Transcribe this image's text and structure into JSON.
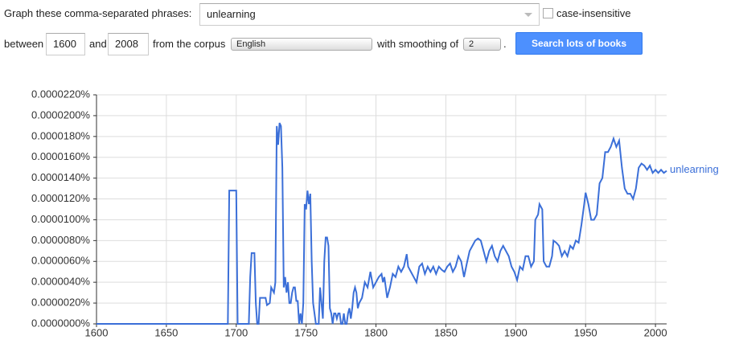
{
  "form": {
    "phrases_label": "Graph these comma-separated phrases:",
    "phrases_value": "unlearning",
    "case_label": "case-insensitive",
    "between_label": "between",
    "start_year": "1600",
    "and_label": "and",
    "end_year": "2008",
    "corpus_label": "from the corpus",
    "corpus_value": "English",
    "smoothing_label": "with smoothing of",
    "smoothing_value": "2",
    "period": ".",
    "button": "Search lots of books"
  },
  "chart_data": {
    "type": "line",
    "grid": true,
    "xlim": [
      1600,
      2008
    ],
    "xticks": [
      1600,
      1650,
      1700,
      1750,
      1800,
      1850,
      1900,
      1950,
      2000
    ],
    "ylim": [
      0,
      2.2e-05
    ],
    "yticks": [
      {
        "value": 0,
        "label": "0.0000000%"
      },
      {
        "value": 2e-06,
        "label": "0.0000020%"
      },
      {
        "value": 4e-06,
        "label": "0.0000040%"
      },
      {
        "value": 6e-06,
        "label": "0.0000060%"
      },
      {
        "value": 8e-06,
        "label": "0.0000080%"
      },
      {
        "value": 1e-05,
        "label": "0.0000100%"
      },
      {
        "value": 1.2e-05,
        "label": "0.0000120%"
      },
      {
        "value": 1.4e-05,
        "label": "0.0000140%"
      },
      {
        "value": 1.6e-05,
        "label": "0.0000160%"
      },
      {
        "value": 1.8e-05,
        "label": "0.0000180%"
      },
      {
        "value": 2e-05,
        "label": "0.0000200%"
      },
      {
        "value": 2.2e-05,
        "label": "0.0000220%"
      }
    ],
    "x": [
      1600,
      1694,
      1695,
      1700,
      1701,
      1709,
      1710,
      1711,
      1713,
      1714,
      1715,
      1716,
      1717,
      1719,
      1721,
      1722,
      1724,
      1725,
      1727,
      1728,
      1729,
      1730,
      1731,
      1732,
      1733,
      1734,
      1735,
      1736,
      1737,
      1738,
      1739,
      1740,
      1741,
      1742,
      1743,
      1744,
      1745,
      1746,
      1747,
      1748,
      1749,
      1750,
      1751,
      1752,
      1753,
      1754,
      1755,
      1756,
      1757,
      1759,
      1760,
      1761,
      1762,
      1763,
      1764,
      1765,
      1766,
      1767,
      1768,
      1769,
      1770,
      1771,
      1772,
      1773,
      1774,
      1775,
      1776,
      1777,
      1778,
      1779,
      1780,
      1781,
      1782,
      1783,
      1784,
      1785,
      1786,
      1787,
      1788,
      1790,
      1792,
      1794,
      1796,
      1798,
      1800,
      1802,
      1804,
      1805,
      1806,
      1807,
      1808,
      1810,
      1812,
      1814,
      1816,
      1818,
      1820,
      1822,
      1823,
      1825,
      1827,
      1829,
      1831,
      1833,
      1835,
      1837,
      1839,
      1841,
      1843,
      1845,
      1847,
      1849,
      1851,
      1853,
      1855,
      1857,
      1859,
      1861,
      1863,
      1865,
      1867,
      1869,
      1871,
      1873,
      1875,
      1877,
      1879,
      1881,
      1883,
      1885,
      1887,
      1889,
      1891,
      1893,
      1895,
      1897,
      1899,
      1901,
      1903,
      1905,
      1907,
      1909,
      1911,
      1913,
      1914,
      1916,
      1917,
      1919,
      1920,
      1922,
      1924,
      1926,
      1927,
      1929,
      1931,
      1933,
      1935,
      1937,
      1939,
      1941,
      1943,
      1945,
      1947,
      1949,
      1950,
      1952,
      1954,
      1956,
      1958,
      1960,
      1962,
      1964,
      1966,
      1968,
      1970,
      1972,
      1974,
      1976,
      1978,
      1980,
      1982,
      1984,
      1986,
      1988,
      1990,
      1992,
      1994,
      1996,
      1998,
      2000,
      2002,
      2004,
      2006,
      2008
    ],
    "series": [
      {
        "name": "unlearning",
        "color": "#3b6fd8",
        "values": [
          0,
          0,
          1.28e-05,
          1.28e-05,
          0,
          0,
          4.5e-06,
          6.8e-06,
          6.8e-06,
          2e-06,
          0,
          0,
          2.5e-06,
          2.5e-06,
          2.5e-06,
          1.8e-06,
          2e-06,
          3.5e-06,
          3e-06,
          4e-06,
          1.9e-05,
          1.72e-05,
          1.93e-05,
          1.9e-05,
          1.5e-05,
          3.5e-06,
          4.5e-06,
          3e-06,
          4e-06,
          2e-06,
          2e-06,
          3e-06,
          3.5e-06,
          3.5e-06,
          2.2e-06,
          2.2e-06,
          0,
          1e-06,
          0,
          2e-06,
          1.15e-05,
          1.1e-05,
          1.28e-05,
          1.15e-05,
          1.25e-05,
          6e-06,
          2e-06,
          1e-06,
          0,
          0,
          3.5e-06,
          2e-06,
          5e-07,
          6e-06,
          8.3e-06,
          8.3e-06,
          7.5e-06,
          1.5e-06,
          1e-06,
          0,
          1e-06,
          1e-06,
          5e-07,
          1e-06,
          1e-06,
          0,
          0,
          1e-06,
          0,
          0,
          1e-06,
          1.5e-06,
          5e-07,
          1.5e-06,
          3e-06,
          3.5e-06,
          3e-06,
          1.5e-06,
          2e-06,
          2.5e-06,
          4e-06,
          3.5e-06,
          5e-06,
          3.5e-06,
          4e-06,
          4.5e-06,
          4.8e-06,
          4e-06,
          4.5e-06,
          3.5e-06,
          2.5e-06,
          3.5e-06,
          4.8e-06,
          4.5e-06,
          5.5e-06,
          5e-06,
          5.5e-06,
          6.7e-06,
          5.5e-06,
          5e-06,
          4.5e-06,
          4e-06,
          5.5e-06,
          5.8e-06,
          4.8e-06,
          5.5e-06,
          5e-06,
          5.5e-06,
          4.8e-06,
          5.5e-06,
          5.2e-06,
          5e-06,
          5.5e-06,
          5.8e-06,
          5e-06,
          5.5e-06,
          6.5e-06,
          6e-06,
          4.5e-06,
          5.8e-06,
          7e-06,
          7.5e-06,
          8e-06,
          8.2e-06,
          8e-06,
          7e-06,
          6e-06,
          7e-06,
          7.5e-06,
          6.5e-06,
          6e-06,
          7e-06,
          7.5e-06,
          7e-06,
          6.5e-06,
          5.5e-06,
          5e-06,
          4.2e-06,
          5.5e-06,
          5.2e-06,
          6.5e-06,
          6.5e-06,
          5.5e-06,
          6e-06,
          1e-05,
          1.05e-05,
          1.15e-05,
          1.1e-05,
          6e-06,
          5.5e-06,
          5.5e-06,
          6.5e-06,
          8e-06,
          7.8e-06,
          7.5e-06,
          6.5e-06,
          7e-06,
          6.5e-06,
          7.5e-06,
          7.2e-06,
          8e-06,
          7.8e-06,
          9.5e-06,
          1.15e-05,
          1.26e-05,
          1.15e-05,
          1e-05,
          1e-05,
          1.05e-05,
          1.35e-05,
          1.4e-05,
          1.65e-05,
          1.65e-05,
          1.7e-05,
          1.78e-05,
          1.7e-05,
          1.76e-05,
          1.5e-05,
          1.3e-05,
          1.25e-05,
          1.25e-05,
          1.2e-05,
          1.3e-05,
          1.5e-05,
          1.54e-05,
          1.52e-05,
          1.48e-05,
          1.52e-05,
          1.45e-05,
          1.48e-05,
          1.45e-05,
          1.48e-05,
          1.45e-05,
          1.47e-05
        ]
      }
    ]
  }
}
